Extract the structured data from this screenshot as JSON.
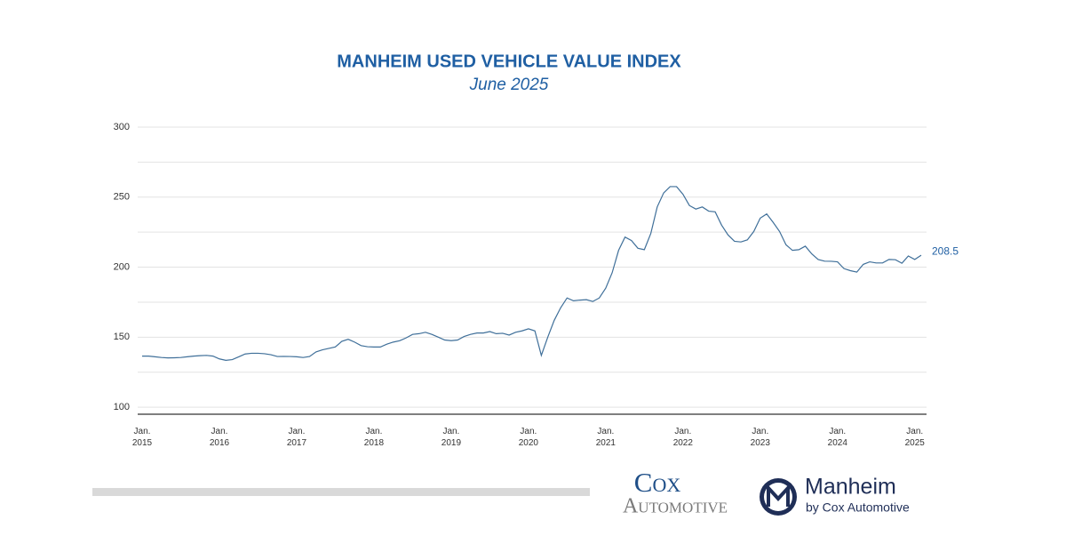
{
  "chart_data": {
    "type": "line",
    "title": "MANHEIM USED VEHICLE VALUE INDEX",
    "subtitle": "June 2025",
    "categories": [
      "Jan. 2015",
      null,
      null,
      null,
      null,
      null,
      null,
      null,
      null,
      null,
      null,
      null,
      "Jan. 2016",
      null,
      null,
      null,
      null,
      null,
      null,
      null,
      null,
      null,
      null,
      null,
      "Jan. 2017",
      null,
      null,
      null,
      null,
      null,
      null,
      null,
      null,
      null,
      null,
      null,
      "Jan. 2018",
      null,
      null,
      null,
      null,
      null,
      null,
      null,
      null,
      null,
      null,
      null,
      "Jan. 2019",
      null,
      null,
      null,
      null,
      null,
      null,
      null,
      null,
      null,
      null,
      null,
      "Jan. 2020",
      null,
      null,
      null,
      null,
      null,
      null,
      null,
      null,
      null,
      null,
      null,
      "Jan. 2021",
      null,
      null,
      null,
      null,
      null,
      null,
      null,
      null,
      null,
      null,
      null,
      "Jan. 2022",
      null,
      null,
      null,
      null,
      null,
      null,
      null,
      null,
      null,
      null,
      null,
      "Jan. 2023",
      null,
      null,
      null,
      null,
      null,
      null,
      null,
      null,
      null,
      null,
      null,
      "Jan. 2024",
      null,
      null,
      null,
      null,
      null,
      null,
      null,
      null,
      null,
      null,
      null,
      "Jan. 2025",
      null
    ],
    "series": [
      {
        "color": "#3f6f99",
        "values": [
          136.5,
          136.5,
          136,
          135.5,
          135.2,
          135.3,
          135.5,
          136,
          136.5,
          136.8,
          137,
          136.5,
          134.5,
          133.5,
          134,
          136,
          138,
          138.5,
          138.5,
          138.2,
          137.5,
          136.2,
          136.3,
          136.2,
          136,
          135.5,
          136.2,
          139.5,
          141,
          142,
          143,
          147,
          148.5,
          146.5,
          144,
          143.2,
          143,
          143,
          145,
          146.5,
          147.5,
          149.5,
          152,
          152.5,
          153.5,
          152,
          150,
          148,
          147.5,
          148,
          150.5,
          152,
          153,
          153,
          154,
          152.5,
          152.8,
          151.5,
          153.5,
          154.5,
          156,
          154.5,
          137,
          150,
          162,
          171,
          178,
          176,
          176.5,
          176.8,
          175.5,
          178,
          185,
          196,
          212,
          221.5,
          219,
          213.5,
          212.5,
          224,
          243,
          253,
          257.5,
          257.5,
          252,
          244,
          241.5,
          243,
          240,
          239.5,
          230,
          223,
          218.5,
          218,
          219.5,
          225.5,
          235,
          238,
          232,
          225.5,
          216,
          212,
          212.5,
          215,
          209.5,
          205.5,
          204.3,
          204.2,
          203.8,
          199,
          197.5,
          196.5,
          202,
          203.8,
          203,
          203,
          205.5,
          205.3,
          202.8,
          208,
          205.5,
          208.5
        ]
      }
    ],
    "ylim": [
      95,
      300
    ],
    "yticks": [
      100,
      150,
      200,
      250,
      300
    ],
    "minor_yticks": [
      125,
      175,
      225,
      275
    ],
    "grid": true
  },
  "logos": {
    "cox_top": "Cox",
    "cox_bottom": "Automotive",
    "manheim": "Manheim",
    "manheim_sub": "by Cox Automotive"
  }
}
